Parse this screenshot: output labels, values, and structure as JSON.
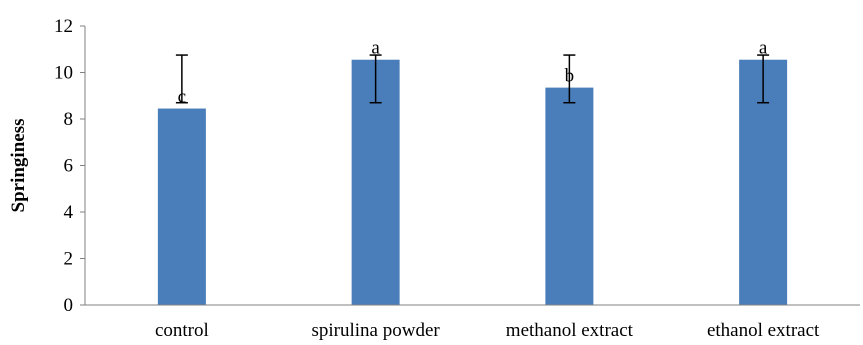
{
  "chart_data": {
    "type": "bar",
    "title": "",
    "xlabel": "",
    "ylabel": "Springiness",
    "ylim": [
      0,
      12
    ],
    "yticks": [
      0,
      2,
      4,
      6,
      8,
      10,
      12
    ],
    "grid": false,
    "legend": "none",
    "bar_color": "#4a7ebb",
    "categories": [
      "control",
      "spirulina powder",
      "methanol extract",
      "ethanol extract"
    ],
    "values": [
      8.45,
      10.55,
      9.35,
      10.55
    ],
    "error_low": [
      8.7,
      8.7,
      8.7,
      8.7
    ],
    "error_high": [
      10.75,
      10.75,
      10.75,
      10.75
    ],
    "significance": [
      "c",
      "a",
      "b",
      "a"
    ]
  }
}
